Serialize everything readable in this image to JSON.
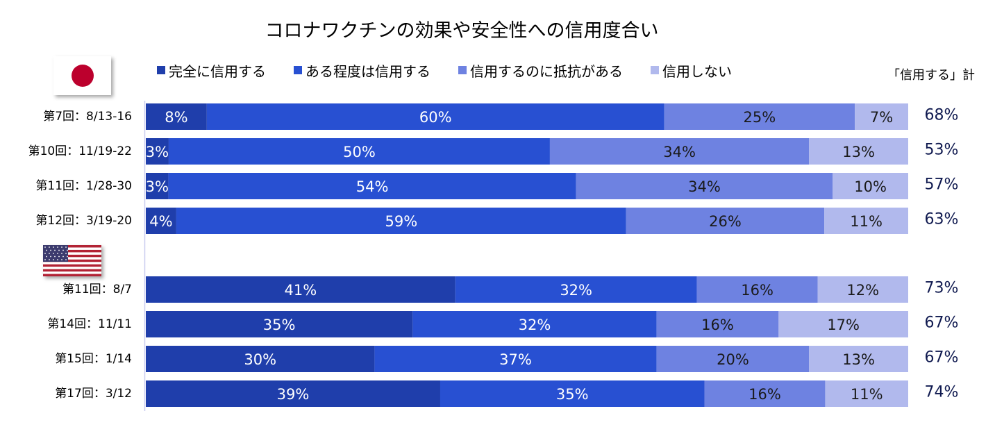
{
  "chart_data": {
    "type": "bar",
    "orientation": "horizontal",
    "stacked": true,
    "normalized": true,
    "title": "コロナワクチンの効果や安全性への信用度合い",
    "total_header": "「信用する」計",
    "legend_position": "top",
    "grid": false,
    "series": [
      {
        "name": "完全に信用する",
        "color": "#1f3eab"
      },
      {
        "name": "ある程度は信用する",
        "color": "#2850d2"
      },
      {
        "name": "信用するのに抵抗がある",
        "color": "#6e82e1"
      },
      {
        "name": "信用しない",
        "color": "#b1b9ed"
      }
    ],
    "groups": [
      {
        "flag": "japan-flag-icon",
        "rows": [
          {
            "label": "第7回：8/13-16",
            "values": [
              8,
              60,
              25,
              7
            ],
            "total": "68%"
          },
          {
            "label": "第10回：11/19-22",
            "values": [
              3,
              50,
              34,
              13
            ],
            "total": "53%"
          },
          {
            "label": "第11回：1/28-30",
            "values": [
              3,
              54,
              34,
              10
            ],
            "total": "57%"
          },
          {
            "label": "第12回：3/19-20",
            "values": [
              4,
              59,
              26,
              11
            ],
            "total": "63%"
          }
        ]
      },
      {
        "flag": "usa-flag-icon",
        "rows": [
          {
            "label": "第11回：8/7",
            "values": [
              41,
              32,
              16,
              12
            ],
            "total": "73%"
          },
          {
            "label": "第14回：11/11",
            "values": [
              35,
              32,
              16,
              17
            ],
            "total": "67%"
          },
          {
            "label": "第15回：1/14",
            "values": [
              30,
              37,
              20,
              13
            ],
            "total": "67%"
          },
          {
            "label": "第17回：3/12",
            "values": [
              39,
              35,
              16,
              11
            ],
            "total": "74%"
          }
        ]
      }
    ],
    "value_label_colors": [
      "#ffffff",
      "#ffffff",
      "#1a1a1a",
      "#1a1a1a"
    ],
    "total_color": "#101a50"
  }
}
